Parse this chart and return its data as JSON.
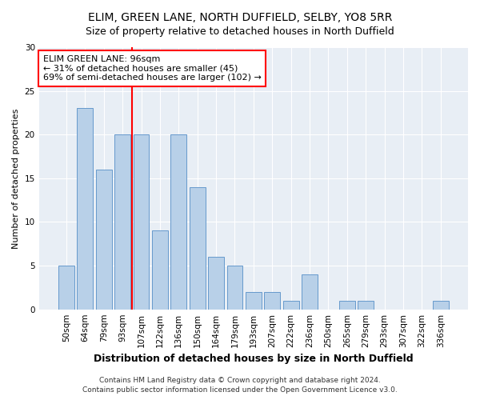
{
  "title1": "ELIM, GREEN LANE, NORTH DUFFIELD, SELBY, YO8 5RR",
  "title2": "Size of property relative to detached houses in North Duffield",
  "xlabel": "Distribution of detached houses by size in North Duffield",
  "ylabel": "Number of detached properties",
  "categories": [
    "50sqm",
    "64sqm",
    "79sqm",
    "93sqm",
    "107sqm",
    "122sqm",
    "136sqm",
    "150sqm",
    "164sqm",
    "179sqm",
    "193sqm",
    "207sqm",
    "222sqm",
    "236sqm",
    "250sqm",
    "265sqm",
    "279sqm",
    "293sqm",
    "307sqm",
    "322sqm",
    "336sqm"
  ],
  "values": [
    5,
    23,
    16,
    20,
    20,
    9,
    20,
    14,
    6,
    5,
    2,
    2,
    1,
    4,
    0,
    1,
    1,
    0,
    0,
    0,
    1
  ],
  "bar_color": "#b8d0e8",
  "bar_edge_color": "#6699cc",
  "vline_index": 3.5,
  "vline_color": "red",
  "annotation_text": "ELIM GREEN LANE: 96sqm\n← 31% of detached houses are smaller (45)\n69% of semi-detached houses are larger (102) →",
  "annotation_box_color": "white",
  "annotation_box_edge": "red",
  "ylim": [
    0,
    30
  ],
  "yticks": [
    0,
    5,
    10,
    15,
    20,
    25,
    30
  ],
  "footer1": "Contains HM Land Registry data © Crown copyright and database right 2024.",
  "footer2": "Contains public sector information licensed under the Open Government Licence v3.0.",
  "background_color": "#ffffff",
  "plot_bg_color": "#e8eef5",
  "grid_color": "#ffffff",
  "title1_fontsize": 10,
  "title2_fontsize": 9,
  "xlabel_fontsize": 9,
  "ylabel_fontsize": 8,
  "tick_fontsize": 7.5,
  "annotation_fontsize": 8,
  "footer_fontsize": 6.5
}
